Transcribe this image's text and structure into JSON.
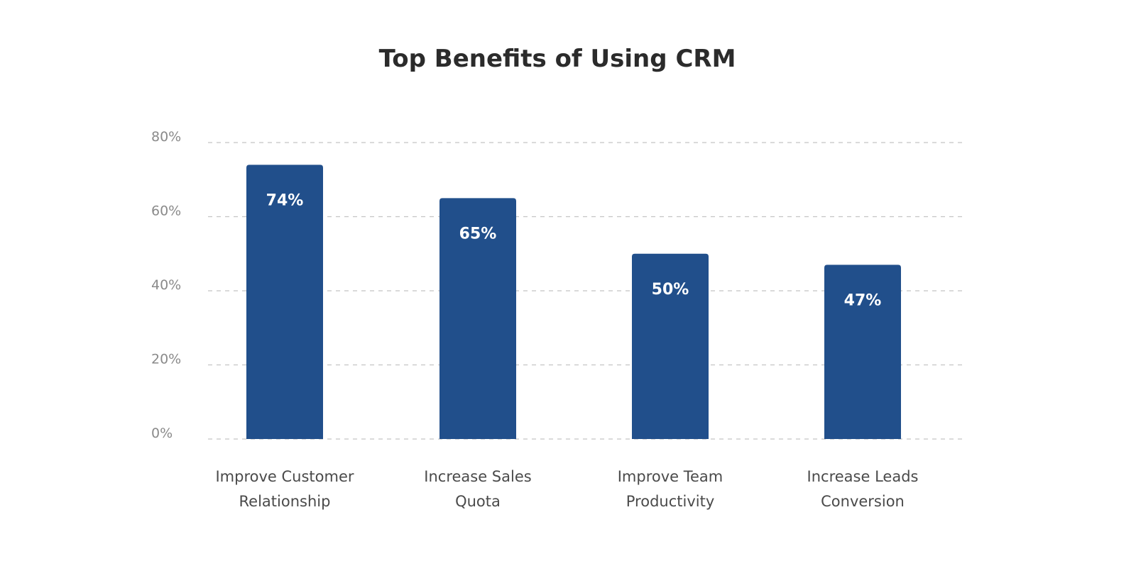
{
  "chart_data": {
    "type": "bar",
    "title": "Top Benefits of Using CRM",
    "xlabel": "",
    "ylabel": "",
    "categories": [
      [
        "Improve Customer",
        "Relationship"
      ],
      [
        "Increase Sales",
        "Quota"
      ],
      [
        "Improve Team",
        "Productivity"
      ],
      [
        "Increase Leads",
        "Conversion"
      ]
    ],
    "values": [
      74,
      65,
      50,
      47
    ],
    "data_labels": [
      "74%",
      "65%",
      "50%",
      "47%"
    ],
    "ylim": [
      0,
      80
    ],
    "yticks": [
      0,
      20,
      40,
      60,
      80
    ],
    "ytick_labels": [
      "0%",
      "20%",
      "40%",
      "60%",
      "80%"
    ],
    "grid": true,
    "legend": "none",
    "colors": {
      "bar": "#214f8b",
      "title": "#2b2b2b",
      "grid": "#c4c4c4"
    }
  }
}
